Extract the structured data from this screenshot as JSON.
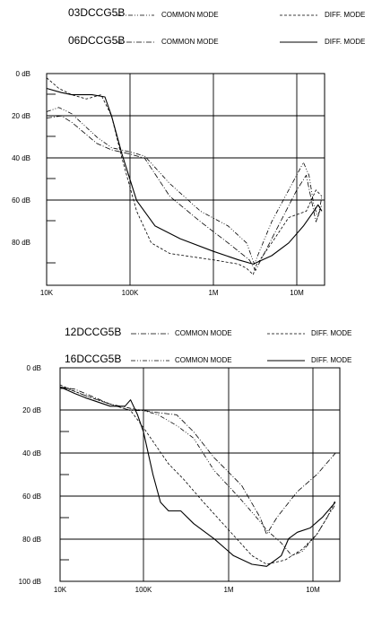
{
  "legend_top": [
    {
      "model": "03DCCG5B",
      "common": "COMMON MODE",
      "diff": "DIFF. MODE"
    },
    {
      "model": "06DCCG5B",
      "common": "COMMON MODE",
      "diff": "DIFF. MODE"
    }
  ],
  "legend_bottom": [
    {
      "model": "12DCCG5B",
      "common": "COMMON MODE",
      "diff": "DIFF. MODE"
    },
    {
      "model": "16DCCG5B",
      "common": "COMMON MODE",
      "diff": "DIFF. MODE"
    }
  ],
  "chart_data": [
    {
      "type": "line",
      "x_scale": "log",
      "xlim": [
        10000,
        20000000
      ],
      "ylim": [
        0,
        100
      ],
      "y_inverted": true,
      "x_ticks": [
        "10K",
        "100K",
        "1M",
        "10M"
      ],
      "y_ticks": [
        "0 dB",
        "20 dB",
        "40 dB",
        "60 dB",
        "80 dB"
      ],
      "grid": true,
      "series": [
        {
          "name": "03DCCG5B COMMON MODE",
          "dash": "dashdotdot",
          "points": [
            [
              10000,
              18
            ],
            [
              14000,
              16
            ],
            [
              20000,
              19
            ],
            [
              40000,
              30
            ],
            [
              60000,
              35
            ],
            [
              100000,
              37
            ],
            [
              150000,
              39
            ],
            [
              300000,
              52
            ],
            [
              700000,
              65
            ],
            [
              1500000,
              72
            ],
            [
              2500000,
              80
            ],
            [
              3100000,
              90
            ],
            [
              3400000,
              86
            ],
            [
              5000000,
              70
            ],
            [
              8000000,
              55
            ],
            [
              12000000,
              42
            ],
            [
              14000000,
              48
            ],
            [
              16000000,
              62
            ],
            [
              18000000,
              68
            ],
            [
              20000000,
              58
            ]
          ]
        },
        {
          "name": "03DCCG5B DIFF. MODE",
          "dash": "dash",
          "points": [
            [
              10000,
              2
            ],
            [
              14000,
              7
            ],
            [
              20000,
              10
            ],
            [
              30000,
              12
            ],
            [
              45000,
              10
            ],
            [
              60000,
              20
            ],
            [
              80000,
              40
            ],
            [
              120000,
              65
            ],
            [
              180000,
              80
            ],
            [
              300000,
              85
            ],
            [
              1000000,
              88
            ],
            [
              2000000,
              90
            ],
            [
              2500000,
              92
            ],
            [
              3000000,
              95
            ],
            [
              3200000,
              91
            ],
            [
              5000000,
              80
            ],
            [
              8000000,
              68
            ],
            [
              13000000,
              65
            ],
            [
              17000000,
              55
            ],
            [
              20000000,
              58
            ]
          ]
        },
        {
          "name": "06DCCG5B COMMON MODE",
          "dash": "dashdot",
          "points": [
            [
              10000,
              21
            ],
            [
              15000,
              20
            ],
            [
              20000,
              23
            ],
            [
              40000,
              33
            ],
            [
              60000,
              36
            ],
            [
              100000,
              38
            ],
            [
              150000,
              40
            ],
            [
              300000,
              58
            ],
            [
              700000,
              70
            ],
            [
              1500000,
              80
            ],
            [
              2700000,
              88
            ],
            [
              3200000,
              93
            ],
            [
              3500000,
              90
            ],
            [
              6000000,
              72
            ],
            [
              10000000,
              55
            ],
            [
              13000000,
              48
            ],
            [
              15000000,
              60
            ],
            [
              17000000,
              70
            ],
            [
              20000000,
              62
            ]
          ]
        },
        {
          "name": "06DCCG5B DIFF. MODE",
          "dash": "solid",
          "points": [
            [
              10000,
              7
            ],
            [
              15000,
              9
            ],
            [
              20000,
              10
            ],
            [
              35000,
              10
            ],
            [
              50000,
              11
            ],
            [
              60000,
              20
            ],
            [
              80000,
              38
            ],
            [
              120000,
              60
            ],
            [
              200000,
              72
            ],
            [
              400000,
              78
            ],
            [
              1000000,
              84
            ],
            [
              2000000,
              88
            ],
            [
              3000000,
              90
            ],
            [
              5000000,
              86
            ],
            [
              8000000,
              80
            ],
            [
              12000000,
              72
            ],
            [
              16000000,
              65
            ],
            [
              18000000,
              62
            ],
            [
              20000000,
              65
            ]
          ]
        }
      ]
    },
    {
      "type": "line",
      "x_scale": "log",
      "xlim": [
        10000,
        20000000
      ],
      "ylim": [
        0,
        100
      ],
      "y_inverted": true,
      "x_ticks": [
        "10K",
        "100K",
        "1M",
        "10M"
      ],
      "y_ticks": [
        "0 dB",
        "20 dB",
        "40 dB",
        "60 dB",
        "80 dB",
        "100 dB"
      ],
      "grid": true,
      "series": [
        {
          "name": "12DCCG5B COMMON MODE",
          "dash": "dashdot",
          "points": [
            [
              10000,
              9
            ],
            [
              15000,
              10
            ],
            [
              20000,
              12
            ],
            [
              40000,
              17
            ],
            [
              70000,
              20
            ],
            [
              100000,
              20
            ],
            [
              150000,
              21
            ],
            [
              250000,
              22
            ],
            [
              400000,
              30
            ],
            [
              700000,
              42
            ],
            [
              1500000,
              55
            ],
            [
              2500000,
              70
            ],
            [
              3000000,
              78
            ],
            [
              4000000,
              70
            ],
            [
              7000000,
              58
            ],
            [
              12000000,
              50
            ],
            [
              20000000,
              40
            ]
          ]
        },
        {
          "name": "12DCCG5B DIFF. MODE",
          "dash": "dash",
          "points": [
            [
              10000,
              8
            ],
            [
              15000,
              11
            ],
            [
              20000,
              13
            ],
            [
              40000,
              17
            ],
            [
              70000,
              20
            ],
            [
              100000,
              28
            ],
            [
              150000,
              38
            ],
            [
              200000,
              45
            ],
            [
              300000,
              52
            ],
            [
              500000,
              62
            ],
            [
              1000000,
              75
            ],
            [
              2000000,
              88
            ],
            [
              3000000,
              92
            ],
            [
              5000000,
              90
            ],
            [
              8000000,
              85
            ],
            [
              12000000,
              78
            ],
            [
              16000000,
              70
            ],
            [
              20000000,
              62
            ]
          ]
        },
        {
          "name": "16DCCG5B COMMON MODE",
          "dash": "dashdotdot",
          "points": [
            [
              10000,
              9
            ],
            [
              15000,
              11
            ],
            [
              20000,
              13
            ],
            [
              40000,
              17
            ],
            [
              70000,
              19
            ],
            [
              100000,
              20
            ],
            [
              150000,
              22
            ],
            [
              250000,
              27
            ],
            [
              400000,
              33
            ],
            [
              700000,
              48
            ],
            [
              1500000,
              62
            ],
            [
              2500000,
              72
            ],
            [
              3000000,
              76
            ],
            [
              4500000,
              82
            ],
            [
              6000000,
              88
            ],
            [
              8000000,
              86
            ],
            [
              12000000,
              78
            ],
            [
              16000000,
              70
            ],
            [
              20000000,
              64
            ]
          ]
        },
        {
          "name": "16DCCG5B DIFF. MODE",
          "dash": "solid",
          "points": [
            [
              10000,
              9
            ],
            [
              15000,
              12
            ],
            [
              20000,
              14
            ],
            [
              40000,
              18
            ],
            [
              60000,
              18
            ],
            [
              70000,
              15
            ],
            [
              85000,
              22
            ],
            [
              100000,
              30
            ],
            [
              130000,
              50
            ],
            [
              160000,
              63
            ],
            [
              200000,
              67
            ],
            [
              280000,
              67
            ],
            [
              400000,
              73
            ],
            [
              700000,
              80
            ],
            [
              1200000,
              88
            ],
            [
              2000000,
              92
            ],
            [
              3000000,
              93
            ],
            [
              4500000,
              88
            ],
            [
              5500000,
              80
            ],
            [
              7000000,
              77
            ],
            [
              10000000,
              75
            ],
            [
              14000000,
              70
            ],
            [
              20000000,
              63
            ]
          ]
        }
      ]
    }
  ]
}
